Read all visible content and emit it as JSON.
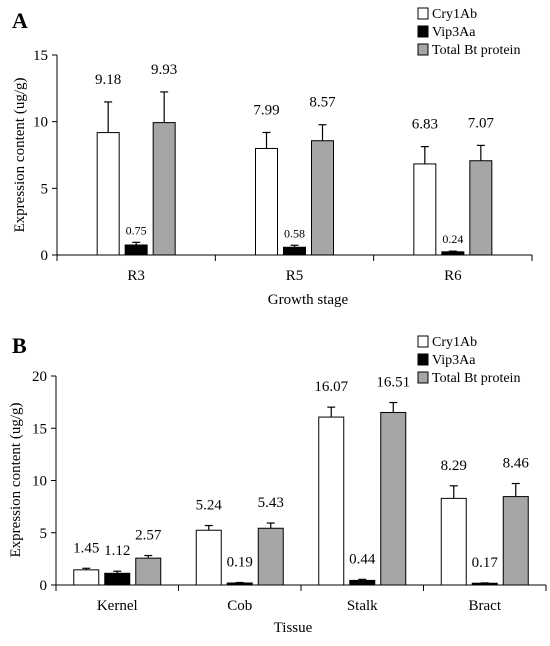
{
  "chart_data": [
    {
      "type": "bar",
      "panel": "A",
      "xlabel": "Growth stage",
      "ylabel": "Expression content (ug/g)",
      "ylim": [
        0,
        15
      ],
      "yticks": [
        0,
        5,
        10,
        15
      ],
      "categories": [
        "R3",
        "R5",
        "R6"
      ],
      "series": [
        {
          "name": "Cry1Ab",
          "color": "#ffffff",
          "values": [
            9.18,
            7.99,
            6.83
          ],
          "errors": [
            2.3,
            1.2,
            1.3
          ],
          "labels": [
            "9.18",
            "7.99",
            "6.83"
          ]
        },
        {
          "name": "Vip3Aa",
          "color": "#000000",
          "values": [
            0.75,
            0.58,
            0.24
          ],
          "errors": [
            0.2,
            0.15,
            0.05
          ],
          "labels": [
            "0.75",
            "0.58",
            "0.24"
          ]
        },
        {
          "name": "Total Bt protein",
          "color": "#a6a6a6",
          "values": [
            9.93,
            8.57,
            7.07
          ],
          "errors": [
            2.3,
            1.2,
            1.15
          ],
          "labels": [
            "9.93",
            "8.57",
            "7.07"
          ]
        }
      ],
      "legend_position": "top-right",
      "grid": false
    },
    {
      "type": "bar",
      "panel": "B",
      "xlabel": "Tissue",
      "ylabel": "Expression content (ug/g)",
      "ylim": [
        0,
        20
      ],
      "yticks": [
        0,
        5,
        10,
        15,
        20
      ],
      "categories": [
        "Kernel",
        "Cob",
        "Stalk",
        "Bract"
      ],
      "series": [
        {
          "name": "Cry1Ab",
          "color": "#ffffff",
          "values": [
            1.45,
            5.24,
            16.07,
            8.29
          ],
          "errors": [
            0.15,
            0.45,
            0.95,
            1.2
          ],
          "labels": [
            "1.45",
            "5.24",
            "16.07",
            "8.29"
          ]
        },
        {
          "name": "Vip3Aa",
          "color": "#000000",
          "values": [
            1.12,
            0.19,
            0.44,
            0.17
          ],
          "errors": [
            0.2,
            0.05,
            0.1,
            0.03
          ],
          "labels": [
            "1.12",
            "0.19",
            "0.44",
            "0.17"
          ]
        },
        {
          "name": "Total Bt protein",
          "color": "#a6a6a6",
          "values": [
            2.57,
            5.43,
            16.51,
            8.46
          ],
          "errors": [
            0.25,
            0.5,
            0.95,
            1.25
          ],
          "labels": [
            "2.57",
            "5.43",
            "16.51",
            "8.46"
          ]
        }
      ],
      "legend_position": "top-right",
      "grid": false
    }
  ]
}
